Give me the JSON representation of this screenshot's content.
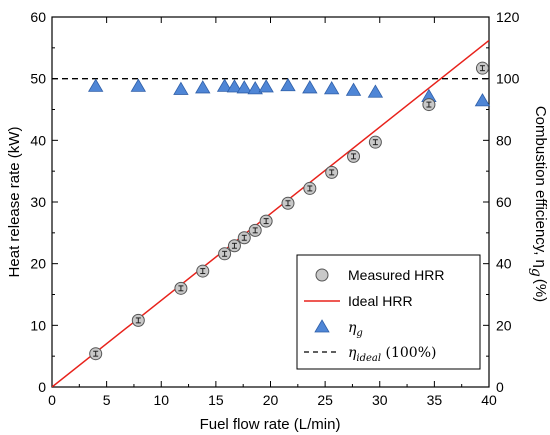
{
  "chart_data": {
    "type": "scatter",
    "xlabel": "Fuel flow rate (L/min)",
    "ylabel_left": "Heat release rate (kW)",
    "ylabel_right": "Combustion efficiency, η",
    "ylabel_right_sub": "g",
    "ylabel_right_unit": "(%)",
    "xlim": [
      0,
      40
    ],
    "ylim_left": [
      0,
      60
    ],
    "ylim_right": [
      0,
      120
    ],
    "x_ticks": [
      "0",
      "5",
      "10",
      "15",
      "20",
      "25",
      "30",
      "35",
      "40"
    ],
    "y_ticks_left": [
      "0",
      "10",
      "20",
      "30",
      "40",
      "50",
      "60"
    ],
    "y_ticks_right": [
      "0",
      "20",
      "40",
      "60",
      "80",
      "100",
      "120"
    ],
    "grid": false,
    "legend_position": "bottom-right",
    "series": [
      {
        "name": "Measured HRR",
        "kind": "scatter-circle-errorbar",
        "axis": "left",
        "color": "#c8c8c8",
        "x": [
          4.0,
          7.9,
          11.8,
          13.8,
          15.8,
          16.7,
          17.6,
          18.6,
          19.6,
          21.6,
          23.6,
          25.6,
          27.6,
          29.6,
          34.5,
          39.4
        ],
        "y": [
          5.4,
          10.8,
          16.0,
          18.8,
          21.6,
          22.9,
          24.2,
          25.4,
          26.9,
          29.8,
          32.2,
          34.8,
          37.4,
          39.7,
          45.8,
          51.7
        ],
        "err": [
          0.4,
          0.4,
          0.4,
          0.4,
          0.4,
          0.4,
          0.4,
          0.4,
          0.4,
          0.4,
          0.4,
          0.4,
          0.4,
          0.4,
          0.4,
          0.4
        ]
      },
      {
        "name": "Ideal HRR",
        "kind": "line",
        "axis": "left",
        "color": "#e8221b",
        "x": [
          0,
          40
        ],
        "y": [
          0,
          56.2
        ]
      },
      {
        "name": "η",
        "name_sub": "g",
        "kind": "scatter-triangle",
        "axis": "right",
        "color": "#4f86d6",
        "x": [
          4.0,
          7.9,
          11.8,
          13.8,
          15.8,
          16.7,
          17.6,
          18.6,
          19.6,
          21.6,
          23.6,
          25.6,
          27.6,
          29.6,
          34.5,
          39.4
        ],
        "y": [
          97.5,
          97.5,
          96.5,
          97.0,
          97.5,
          97.3,
          97.0,
          96.7,
          97.3,
          97.7,
          97.0,
          96.7,
          96.2,
          95.6,
          94.2,
          92.8
        ]
      },
      {
        "name": "η",
        "name_sub": "ideal",
        "name_suffix": " (100%)",
        "kind": "dashed-line",
        "axis": "right",
        "color": "#000000",
        "x": [
          0,
          40
        ],
        "y": [
          100,
          100
        ]
      }
    ]
  }
}
